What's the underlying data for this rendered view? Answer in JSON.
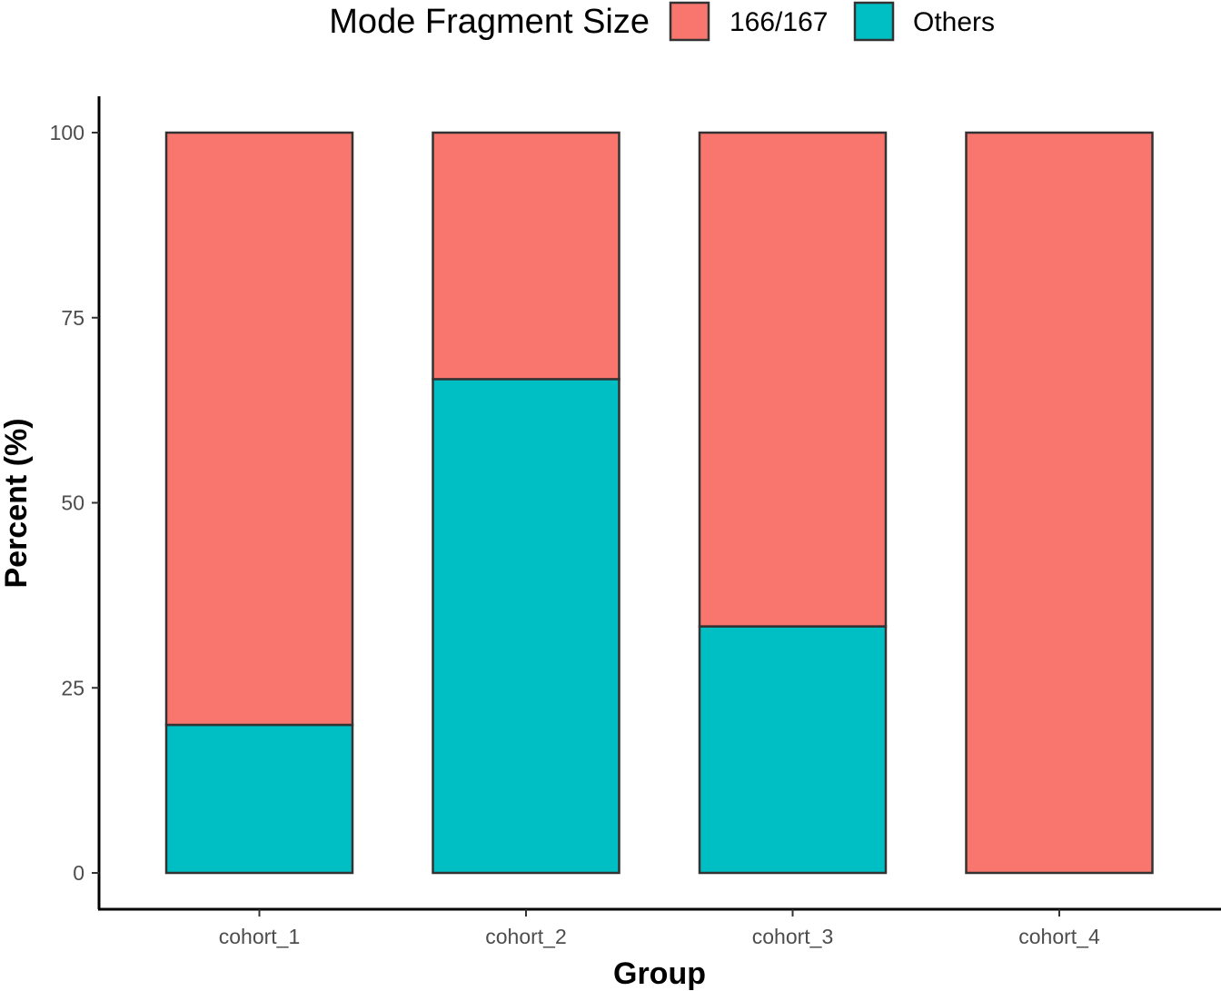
{
  "chart_data": {
    "type": "bar",
    "stacked": true,
    "xlabel": "Group",
    "ylabel": "Percent (%)",
    "ylim": [
      0,
      100
    ],
    "yticks": [
      0,
      25,
      50,
      75,
      100
    ],
    "grid": false,
    "categories": [
      "cohort_1",
      "cohort_2",
      "cohort_3",
      "cohort_4"
    ],
    "legend": {
      "title": "Mode Fragment Size",
      "placement": "top"
    },
    "series": [
      {
        "name": "Others",
        "color": "#00BFC4",
        "values": [
          20,
          66.7,
          33.3,
          0
        ]
      },
      {
        "name": "166/167",
        "color": "#F8766D",
        "values": [
          80,
          33.3,
          66.7,
          100
        ]
      }
    ],
    "legend_order": [
      "166/167",
      "Others"
    ]
  }
}
